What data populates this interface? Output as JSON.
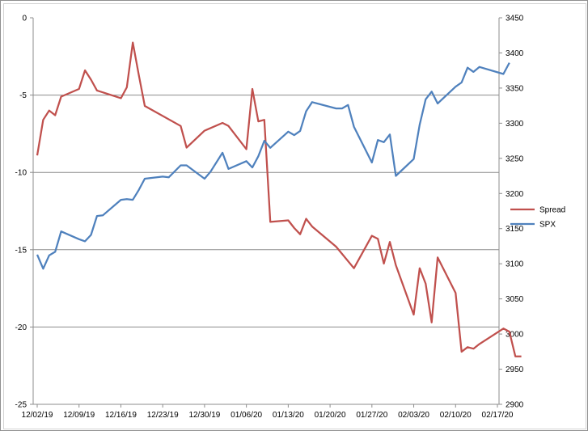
{
  "chart_data": {
    "type": "line",
    "title": "",
    "xlabel": "",
    "ylabel": "",
    "x_ticks": [
      "12/02/19",
      "12/09/19",
      "12/16/19",
      "12/23/19",
      "12/30/19",
      "01/06/20",
      "01/13/20",
      "01/20/20",
      "01/27/20",
      "02/03/20",
      "02/10/20",
      "02/17/20"
    ],
    "y_left": {
      "min": -25,
      "max": 0,
      "ticks": [
        0,
        -5,
        -10,
        -15,
        -20,
        -25
      ]
    },
    "y_right": {
      "min": 2900,
      "max": 3450,
      "ticks": [
        3450,
        3400,
        3350,
        3300,
        3250,
        3200,
        3150,
        3100,
        3050,
        3000,
        2950,
        2900
      ]
    },
    "grid": "horizontal",
    "legend_position": "right",
    "series": [
      {
        "name": "Spread",
        "axis": "left",
        "color": "#c0504d",
        "points": [
          [
            "12/02/19",
            -8.9
          ],
          [
            "12/03/19",
            -6.6
          ],
          [
            "12/04/19",
            -6.0
          ],
          [
            "12/05/19",
            -6.3
          ],
          [
            "12/06/19",
            -5.1
          ],
          [
            "12/09/19",
            -4.6
          ],
          [
            "12/10/19",
            -3.4
          ],
          [
            "12/11/19",
            -4.0
          ],
          [
            "12/12/19",
            -4.7
          ],
          [
            "12/16/19",
            -5.2
          ],
          [
            "12/17/19",
            -4.5
          ],
          [
            "12/18/19",
            -1.6
          ],
          [
            "12/19/19",
            -3.7
          ],
          [
            "12/20/19",
            -5.7
          ],
          [
            "12/26/19",
            -7.0
          ],
          [
            "12/27/19",
            -8.4
          ],
          [
            "12/30/19",
            -7.3
          ],
          [
            "01/02/20",
            -6.8
          ],
          [
            "01/03/20",
            -7.0
          ],
          [
            "01/06/20",
            -8.5
          ],
          [
            "01/07/20",
            -4.6
          ],
          [
            "01/08/20",
            -6.7
          ],
          [
            "01/09/20",
            -6.6
          ],
          [
            "01/10/20",
            -13.2
          ],
          [
            "01/13/20",
            -13.1
          ],
          [
            "01/14/20",
            -13.6
          ],
          [
            "01/15/20",
            -14.0
          ],
          [
            "01/16/20",
            -13.0
          ],
          [
            "01/17/20",
            -13.5
          ],
          [
            "01/21/20",
            -14.8
          ],
          [
            "01/24/20",
            -16.2
          ],
          [
            "01/27/20",
            -14.1
          ],
          [
            "01/28/20",
            -14.3
          ],
          [
            "01/29/20",
            -15.9
          ],
          [
            "01/30/20",
            -14.5
          ],
          [
            "01/31/20",
            -16.0
          ],
          [
            "02/03/20",
            -19.2
          ],
          [
            "02/04/20",
            -16.2
          ],
          [
            "02/05/20",
            -17.2
          ],
          [
            "02/06/20",
            -19.7
          ],
          [
            "02/07/20",
            -15.5
          ],
          [
            "02/10/20",
            -17.8
          ],
          [
            "02/11/20",
            -21.6
          ],
          [
            "02/12/20",
            -21.3
          ],
          [
            "02/13/20",
            -21.4
          ],
          [
            "02/14/20",
            -21.1
          ],
          [
            "02/18/20",
            -20.1
          ],
          [
            "02/19/20",
            -20.3
          ],
          [
            "02/20/20",
            -21.9
          ],
          [
            "02/21/20",
            -21.9
          ]
        ]
      },
      {
        "name": "SPX",
        "axis": "right",
        "color": "#4f81bd",
        "points": [
          [
            "12/02/19",
            3113
          ],
          [
            "12/03/19",
            3093
          ],
          [
            "12/04/19",
            3112
          ],
          [
            "12/05/19",
            3117
          ],
          [
            "12/06/19",
            3146
          ],
          [
            "12/09/19",
            3135
          ],
          [
            "12/10/19",
            3132
          ],
          [
            "12/11/19",
            3141
          ],
          [
            "12/12/19",
            3168
          ],
          [
            "12/13/19",
            3169
          ],
          [
            "12/16/19",
            3191
          ],
          [
            "12/17/19",
            3192
          ],
          [
            "12/18/19",
            3191
          ],
          [
            "12/19/19",
            3205
          ],
          [
            "12/20/19",
            3221
          ],
          [
            "12/23/19",
            3224
          ],
          [
            "12/24/19",
            3223
          ],
          [
            "12/26/19",
            3240
          ],
          [
            "12/27/19",
            3240
          ],
          [
            "12/30/19",
            3221
          ],
          [
            "12/31/19",
            3231
          ],
          [
            "01/02/20",
            3258
          ],
          [
            "01/03/20",
            3235
          ],
          [
            "01/06/20",
            3246
          ],
          [
            "01/07/20",
            3237
          ],
          [
            "01/08/20",
            3253
          ],
          [
            "01/09/20",
            3275
          ],
          [
            "01/10/20",
            3265
          ],
          [
            "01/13/20",
            3288
          ],
          [
            "01/14/20",
            3283
          ],
          [
            "01/15/20",
            3289
          ],
          [
            "01/16/20",
            3317
          ],
          [
            "01/17/20",
            3330
          ],
          [
            "01/21/20",
            3321
          ],
          [
            "01/22/20",
            3321
          ],
          [
            "01/23/20",
            3326
          ],
          [
            "01/24/20",
            3295
          ],
          [
            "01/27/20",
            3244
          ],
          [
            "01/28/20",
            3276
          ],
          [
            "01/29/20",
            3273
          ],
          [
            "01/30/20",
            3284
          ],
          [
            "01/31/20",
            3225
          ],
          [
            "02/03/20",
            3249
          ],
          [
            "02/04/20",
            3298
          ],
          [
            "02/05/20",
            3334
          ],
          [
            "02/06/20",
            3345
          ],
          [
            "02/07/20",
            3328
          ],
          [
            "02/10/20",
            3352
          ],
          [
            "02/11/20",
            3358
          ],
          [
            "02/12/20",
            3379
          ],
          [
            "02/13/20",
            3373
          ],
          [
            "02/14/20",
            3380
          ],
          [
            "02/18/20",
            3370
          ],
          [
            "02/19/20",
            3386
          ]
        ]
      }
    ]
  }
}
